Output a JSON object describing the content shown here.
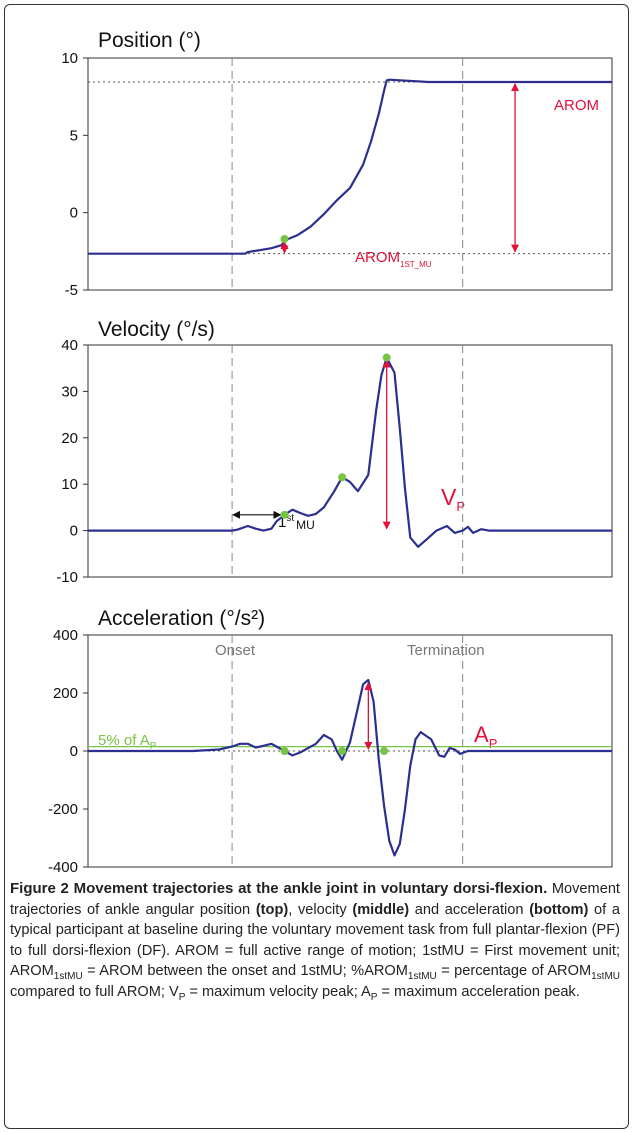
{
  "colors": {
    "trace": "#2b2f8f",
    "annotation_red": "#e0113b",
    "marker_green": "#76c442",
    "event_line": "#888888",
    "reference_line": "#555555",
    "frame": "#333333"
  },
  "chart_data": [
    {
      "type": "line",
      "title": "Position (°)",
      "xlabel": "",
      "ylabel": "",
      "ylim": [
        -5,
        10
      ],
      "yticks": [
        10,
        5,
        0,
        -5
      ],
      "grid": false,
      "x": [
        0,
        20,
        40,
        60,
        61,
        70,
        74,
        75,
        80,
        85,
        90,
        95,
        100,
        105,
        108,
        111,
        113,
        114,
        115,
        130,
        150,
        155,
        160,
        170,
        175,
        176,
        180,
        190,
        200
      ],
      "y": [
        -2.65,
        -2.65,
        -2.65,
        -2.65,
        -2.55,
        -2.3,
        -2.1,
        -1.8,
        -1.45,
        -0.9,
        -0.1,
        0.8,
        1.6,
        3.1,
        4.6,
        6.4,
        7.9,
        8.55,
        8.6,
        8.45,
        8.45,
        8.45,
        8.45,
        8.45,
        8.45,
        8.45,
        8.45,
        8.45,
        8.45
      ],
      "reference_levels": [
        8.45,
        -2.65
      ],
      "events": {
        "onset": 55,
        "termination": 143
      },
      "markers": [
        {
          "x": 75,
          "y": -1.7
        }
      ],
      "annotations": {
        "arom": "AROM",
        "arom_1st_base": "AROM",
        "arom_1st_sub": "1ST_MU"
      }
    },
    {
      "type": "line",
      "title": "Velocity (°/s)",
      "xlabel": "",
      "ylabel": "",
      "ylim": [
        -10,
        40
      ],
      "yticks": [
        40,
        30,
        20,
        10,
        0,
        -10
      ],
      "grid": false,
      "x": [
        0,
        40,
        55,
        57,
        61,
        64,
        67,
        70,
        72,
        75,
        78,
        81,
        84,
        87,
        90,
        94,
        97,
        100,
        103,
        107,
        110,
        112,
        114,
        117,
        119,
        121,
        123,
        126,
        129,
        133,
        137,
        140,
        143,
        145,
        147,
        150,
        153,
        160,
        200
      ],
      "y": [
        0,
        0,
        0,
        0.2,
        1.0,
        0.4,
        0,
        0.4,
        2,
        3.4,
        4.5,
        3.8,
        3.2,
        3.6,
        5,
        8.5,
        11.5,
        10.5,
        8.5,
        12,
        26,
        33.5,
        37.3,
        34,
        22,
        9,
        -1.5,
        -3.5,
        -2,
        0,
        1.0,
        -0.5,
        0,
        0.8,
        -0.5,
        0.3,
        0,
        0,
        0
      ],
      "events": {
        "onset": 55,
        "termination": 143
      },
      "markers": [
        {
          "x": 75,
          "y": 3.4
        },
        {
          "x": 97,
          "y": 11.5
        },
        {
          "x": 114,
          "y": 37.3
        }
      ],
      "annotations": {
        "first_mu_base": "1",
        "first_mu_sup": "st",
        "first_mu_tail": "MU",
        "vp_base": "V",
        "vp_sub": "P"
      }
    },
    {
      "type": "line",
      "title": "Acceleration (°/s²)",
      "xlabel": "",
      "ylabel": "",
      "ylim": [
        -400,
        400
      ],
      "yticks": [
        400,
        200,
        0,
        -200,
        -400
      ],
      "grid": false,
      "x": [
        0,
        40,
        50,
        55,
        58,
        61,
        64,
        67,
        70,
        72,
        75,
        78,
        81,
        84,
        87,
        90,
        93,
        95,
        97,
        100,
        103,
        105,
        107,
        109,
        111,
        113,
        115,
        117,
        119,
        121,
        123,
        125,
        127,
        131,
        134,
        136,
        138,
        140,
        142,
        145,
        150,
        160,
        200
      ],
      "y": [
        0,
        0,
        5,
        15,
        25,
        25,
        12,
        18,
        25,
        15,
        0,
        -15,
        -5,
        10,
        25,
        55,
        40,
        0,
        -30,
        30,
        150,
        230,
        245,
        170,
        -30,
        -190,
        -310,
        -360,
        -320,
        -200,
        -50,
        40,
        65,
        40,
        -15,
        -20,
        10,
        5,
        -10,
        0,
        0,
        0,
        0
      ],
      "threshold": 15,
      "events": {
        "onset": 55,
        "termination": 143
      },
      "markers": [
        {
          "x": 75,
          "y": 0
        },
        {
          "x": 97,
          "y": 0
        },
        {
          "x": 113,
          "y": 0
        }
      ],
      "annotations": {
        "onset": "Onset",
        "termination": "Termination",
        "ap_base": "A",
        "ap_sub": "P",
        "threshold_base": "5% of A",
        "threshold_sub": "P"
      }
    }
  ],
  "caption": {
    "heading": "Figure 2 Movement trajectories at the ankle joint in voluntary dorsi-flexion.",
    "text_1": "Movement trajectories of ankle angular position",
    "bold_top": "(top)",
    "text_2": ", velocity",
    "bold_middle": "(middle)",
    "text_3": "and acceleration",
    "bold_bottom": "(bottom)",
    "text_4": "of a typical participant at baseline during the voluntary movement task from full plantar-flexion (PF) to full dorsi-flexion (DF). AROM = full active range of motion; 1stMU = First movement unit; AROM",
    "sub_1": "1stMU",
    "text_5": "= AROM between the onset and 1stMU; %AROM",
    "sub_2": "1stMU",
    "text_6": "= percentage of AROM",
    "sub_3": "1stMU",
    "text_7": "compared to full AROM; V",
    "sub_4": "P",
    "text_8": "= maximum velocity peak; A",
    "sub_5": "P",
    "text_9": "= maximum acceleration peak."
  }
}
